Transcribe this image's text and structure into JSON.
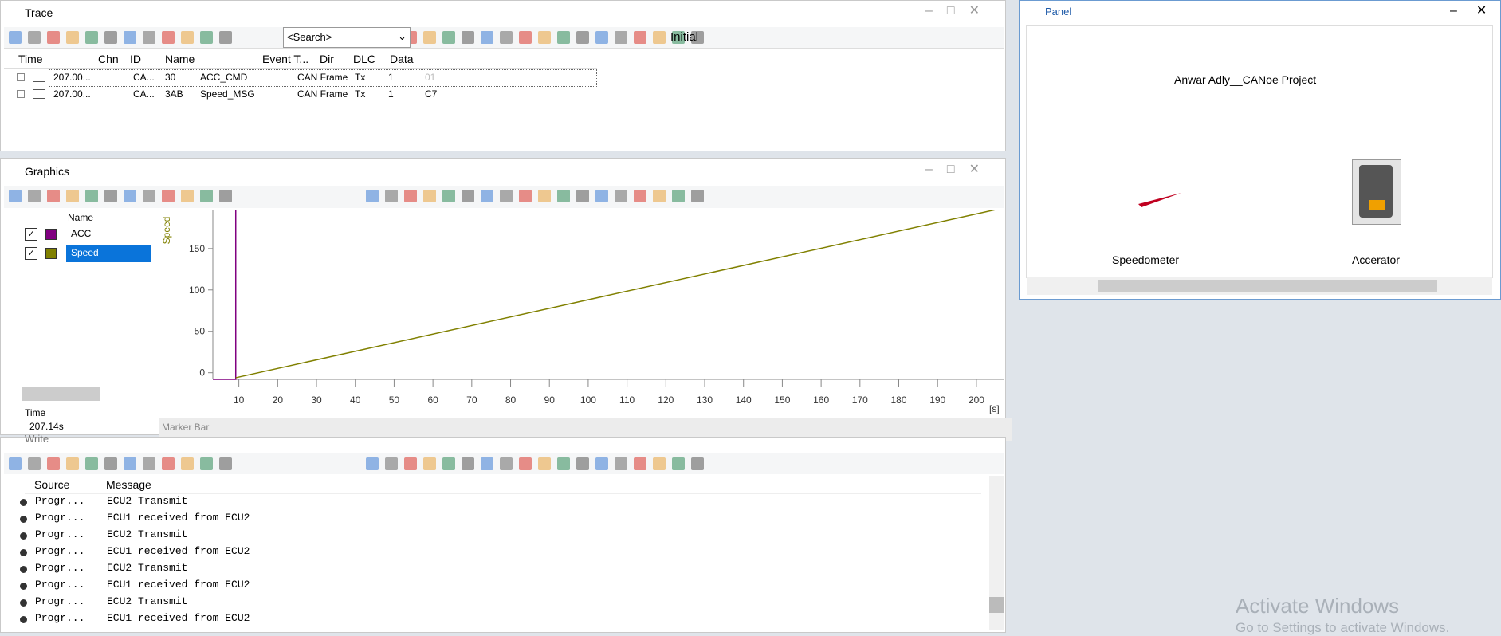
{
  "trace": {
    "title": "Trace",
    "search": "<Search>",
    "filter": "Initial",
    "columns": [
      "Time",
      "Chn",
      "ID",
      "Name",
      "Event T...",
      "Dir",
      "DLC",
      "Data"
    ],
    "rows": [
      [
        "207.00...",
        "CA...",
        "30",
        "ACC_CMD",
        "CAN Frame",
        "Tx",
        "1",
        "01"
      ],
      [
        "207.00...",
        "CA...",
        "3AB",
        "Speed_MSG",
        "CAN Frame",
        "Tx",
        "1",
        "C7"
      ]
    ]
  },
  "graphics": {
    "title": "Graphics",
    "list_header": "Name",
    "time_label": "Time",
    "time_value": "207.14s",
    "marker_bar": "Marker Bar",
    "plot": {
      "ylabel": "Speed",
      "xunit": "[s]",
      "xlim": [
        3.3,
        207
      ],
      "ylim": [
        -8,
        197
      ],
      "xticks": [
        10,
        20,
        30,
        40,
        50,
        60,
        70,
        80,
        90,
        100,
        110,
        120,
        130,
        140,
        150,
        160,
        170,
        180,
        190,
        200
      ],
      "yticks": [
        0,
        50,
        100,
        150
      ],
      "series": [
        {
          "name": "ACC",
          "color": "#800080",
          "x": [
            3.3,
            9.2,
            9.2,
            207
          ],
          "values": [
            -8,
            -8,
            197,
            197
          ]
        },
        {
          "name": "Speed",
          "color": "#808000",
          "x": [
            9.2,
            205
          ],
          "values": [
            -6,
            197
          ]
        }
      ]
    }
  },
  "write": {
    "title": "Write",
    "columns": [
      "Source",
      "Message"
    ],
    "rows": [
      [
        "Progr...",
        "ECU2 Transmit"
      ],
      [
        "Progr...",
        "ECU1 received from ECU2"
      ],
      [
        "Progr...",
        "ECU2 Transmit"
      ],
      [
        "Progr...",
        "ECU1 received from ECU2"
      ],
      [
        "Progr...",
        "ECU2 Transmit"
      ],
      [
        "Progr...",
        "ECU1 received from ECU2"
      ],
      [
        "Progr...",
        "ECU2 Transmit"
      ],
      [
        "Progr...",
        "ECU1 received from ECU2"
      ]
    ]
  },
  "panel": {
    "title": "Panel",
    "project": "Anwar Adly__CANoe Project",
    "gauges": [
      "Speedometer",
      "Accerator"
    ]
  },
  "watermark": {
    "title": "Activate Windows",
    "subtitle": "Go to Settings to activate Windows."
  }
}
